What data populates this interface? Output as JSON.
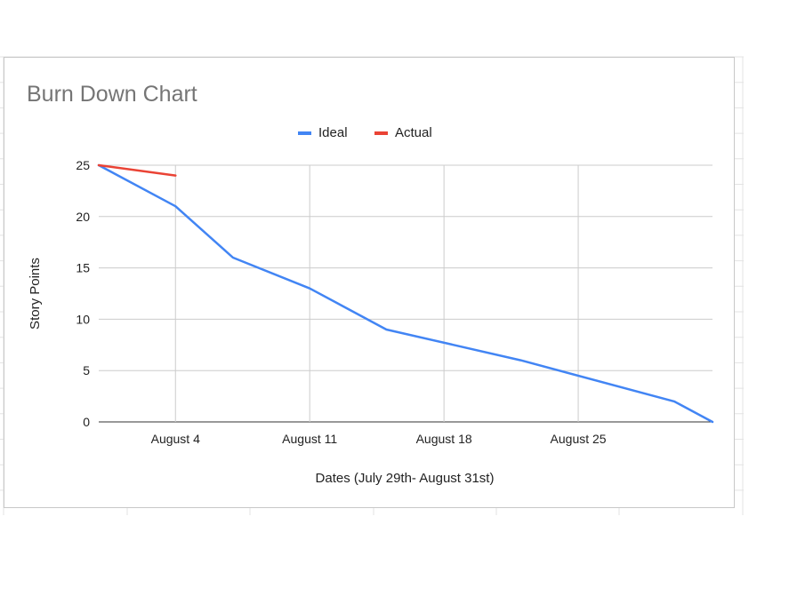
{
  "chart_data": {
    "type": "line",
    "title": "Burn Down Chart",
    "xlabel": "Dates (July 29th- August 31st)",
    "ylabel": "Story Points",
    "xlim": [
      "2019-07-31",
      "2019-09-01"
    ],
    "ylim": [
      0,
      25
    ],
    "x_ticks": [
      {
        "date": "2019-08-04",
        "label": "August 4"
      },
      {
        "date": "2019-08-11",
        "label": "August 11"
      },
      {
        "date": "2019-08-18",
        "label": "August 18"
      },
      {
        "date": "2019-08-25",
        "label": "August 25"
      }
    ],
    "y_ticks": [
      0,
      5,
      10,
      15,
      20,
      25
    ],
    "grid": true,
    "legend": "top",
    "series": [
      {
        "name": "Ideal",
        "color": "#4285f4",
        "points": [
          {
            "x": "2019-07-31",
            "y": 25
          },
          {
            "x": "2019-08-04",
            "y": 21
          },
          {
            "x": "2019-08-07",
            "y": 16
          },
          {
            "x": "2019-08-11",
            "y": 13
          },
          {
            "x": "2019-08-15",
            "y": 9
          },
          {
            "x": "2019-08-22",
            "y": 6
          },
          {
            "x": "2019-08-30",
            "y": 2
          },
          {
            "x": "2019-09-01",
            "y": 0
          }
        ]
      },
      {
        "name": "Actual",
        "color": "#ea4335",
        "points": [
          {
            "x": "2019-07-31",
            "y": 25
          },
          {
            "x": "2019-08-04",
            "y": 24
          }
        ]
      }
    ]
  }
}
